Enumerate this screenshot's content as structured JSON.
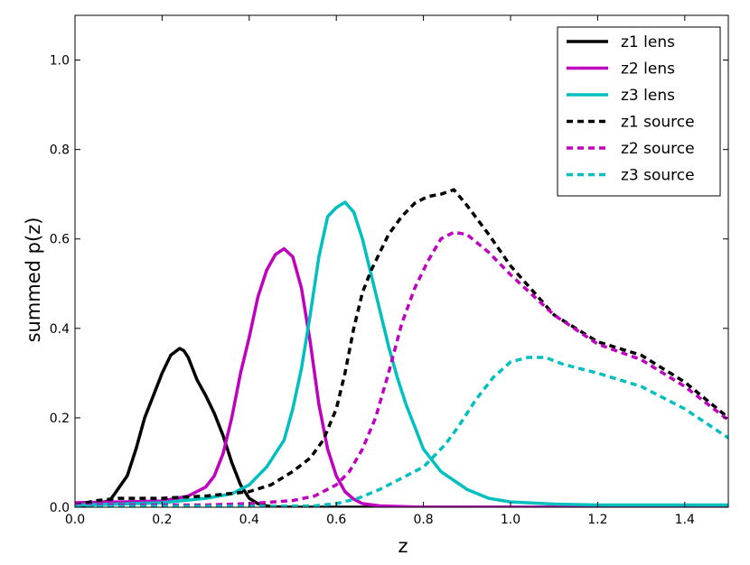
{
  "chart_data": {
    "type": "line",
    "title": "",
    "xlabel": "z",
    "ylabel": "summed p(z)",
    "xlim": [
      0.0,
      1.5
    ],
    "ylim": [
      0.0,
      1.1
    ],
    "xticks": [
      0.0,
      0.2,
      0.4,
      0.6,
      0.8,
      1.0,
      1.2,
      1.4
    ],
    "yticks": [
      0.0,
      0.2,
      0.4,
      0.6,
      0.8,
      1.0
    ],
    "xtick_labels": [
      "0.0",
      "0.2",
      "0.4",
      "0.6",
      "0.8",
      "1.0",
      "1.2",
      "1.4"
    ],
    "ytick_labels": [
      "0.0",
      "0.2",
      "0.4",
      "0.6",
      "0.8",
      "1.0"
    ],
    "grid": false,
    "legend_position": "top-right",
    "series": [
      {
        "name": "z1 lens",
        "color": "#000000",
        "dash": "solid",
        "x": [
          0.0,
          0.04,
          0.08,
          0.12,
          0.14,
          0.16,
          0.18,
          0.2,
          0.22,
          0.24,
          0.25,
          0.26,
          0.28,
          0.3,
          0.32,
          0.34,
          0.36,
          0.38,
          0.4,
          0.42,
          0.44,
          0.46,
          0.5,
          0.6,
          0.8,
          1.0,
          1.2,
          1.5
        ],
        "y": [
          0.0,
          0.005,
          0.015,
          0.07,
          0.13,
          0.2,
          0.25,
          0.3,
          0.34,
          0.355,
          0.35,
          0.335,
          0.285,
          0.25,
          0.21,
          0.16,
          0.1,
          0.05,
          0.02,
          0.008,
          0.003,
          0.001,
          0.0,
          0.0,
          0.0,
          0.0,
          0.0,
          0.0
        ]
      },
      {
        "name": "z2 lens",
        "color": "#bf00bf",
        "dash": "solid",
        "x": [
          0.0,
          0.1,
          0.2,
          0.26,
          0.3,
          0.32,
          0.34,
          0.36,
          0.38,
          0.4,
          0.42,
          0.44,
          0.46,
          0.48,
          0.5,
          0.52,
          0.54,
          0.56,
          0.58,
          0.6,
          0.62,
          0.64,
          0.66,
          0.7,
          0.8,
          1.0,
          1.5
        ],
        "y": [
          0.01,
          0.012,
          0.014,
          0.025,
          0.045,
          0.07,
          0.12,
          0.2,
          0.3,
          0.38,
          0.47,
          0.53,
          0.565,
          0.578,
          0.56,
          0.49,
          0.37,
          0.23,
          0.13,
          0.07,
          0.035,
          0.018,
          0.008,
          0.003,
          0.0,
          0.0,
          0.0
        ]
      },
      {
        "name": "z3 lens",
        "color": "#00bfbf",
        "dash": "solid",
        "x": [
          0.0,
          0.1,
          0.2,
          0.3,
          0.36,
          0.4,
          0.44,
          0.48,
          0.5,
          0.52,
          0.54,
          0.56,
          0.58,
          0.6,
          0.62,
          0.64,
          0.66,
          0.68,
          0.7,
          0.72,
          0.74,
          0.76,
          0.78,
          0.8,
          0.84,
          0.9,
          0.95,
          1.0,
          1.1,
          1.2,
          1.5
        ],
        "y": [
          0.005,
          0.007,
          0.01,
          0.02,
          0.03,
          0.05,
          0.09,
          0.15,
          0.22,
          0.31,
          0.43,
          0.56,
          0.65,
          0.67,
          0.682,
          0.66,
          0.6,
          0.52,
          0.44,
          0.36,
          0.29,
          0.23,
          0.18,
          0.13,
          0.08,
          0.04,
          0.02,
          0.012,
          0.007,
          0.005,
          0.005
        ]
      },
      {
        "name": "z1 source",
        "color": "#000000",
        "dash": "dashed",
        "x": [
          0.0,
          0.05,
          0.1,
          0.2,
          0.3,
          0.4,
          0.45,
          0.5,
          0.54,
          0.57,
          0.6,
          0.62,
          0.64,
          0.66,
          0.68,
          0.7,
          0.72,
          0.75,
          0.78,
          0.81,
          0.84,
          0.87,
          0.9,
          0.95,
          1.0,
          1.1,
          1.2,
          1.3,
          1.4,
          1.5
        ],
        "y": [
          0.005,
          0.015,
          0.02,
          0.02,
          0.025,
          0.035,
          0.05,
          0.08,
          0.11,
          0.15,
          0.22,
          0.3,
          0.4,
          0.48,
          0.53,
          0.57,
          0.61,
          0.65,
          0.68,
          0.695,
          0.7,
          0.71,
          0.675,
          0.61,
          0.54,
          0.43,
          0.37,
          0.34,
          0.28,
          0.2
        ]
      },
      {
        "name": "z2 source",
        "color": "#bf00bf",
        "dash": "dashed",
        "x": [
          0.0,
          0.1,
          0.2,
          0.3,
          0.4,
          0.5,
          0.55,
          0.6,
          0.63,
          0.66,
          0.69,
          0.72,
          0.75,
          0.78,
          0.81,
          0.84,
          0.87,
          0.9,
          0.95,
          1.0,
          1.1,
          1.2,
          1.3,
          1.4,
          1.5
        ],
        "y": [
          0.005,
          0.005,
          0.005,
          0.005,
          0.008,
          0.015,
          0.025,
          0.05,
          0.08,
          0.13,
          0.2,
          0.3,
          0.41,
          0.49,
          0.55,
          0.6,
          0.615,
          0.61,
          0.57,
          0.52,
          0.43,
          0.365,
          0.33,
          0.27,
          0.195
        ]
      },
      {
        "name": "z3 source",
        "color": "#00bfbf",
        "dash": "dashed",
        "x": [
          0.0,
          0.2,
          0.4,
          0.55,
          0.6,
          0.65,
          0.7,
          0.75,
          0.8,
          0.85,
          0.88,
          0.92,
          0.96,
          1.0,
          1.04,
          1.08,
          1.12,
          1.2,
          1.3,
          1.4,
          1.5
        ],
        "y": [
          0.002,
          0.002,
          0.002,
          0.003,
          0.008,
          0.02,
          0.04,
          0.065,
          0.09,
          0.14,
          0.18,
          0.24,
          0.29,
          0.325,
          0.335,
          0.335,
          0.32,
          0.3,
          0.27,
          0.22,
          0.155
        ]
      }
    ]
  }
}
